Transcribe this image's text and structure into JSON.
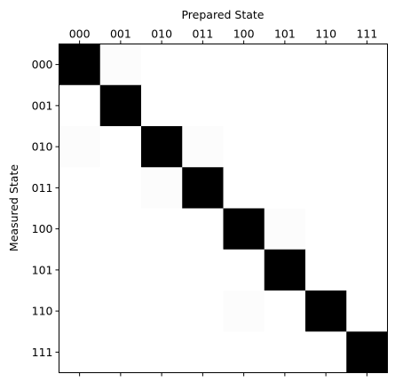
{
  "chart_data": {
    "type": "heatmap",
    "title": "",
    "xlabel": "Prepared State",
    "ylabel": "Measured State",
    "x_categories": [
      "000",
      "001",
      "010",
      "011",
      "100",
      "101",
      "110",
      "111"
    ],
    "y_categories": [
      "000",
      "001",
      "010",
      "011",
      "100",
      "101",
      "110",
      "111"
    ],
    "x_tick_position": "top",
    "bottom_ticks_unlabeled": true,
    "colormap": "Greys",
    "color_range": [
      0,
      1
    ],
    "grid": false,
    "legend": "none",
    "matrix": [
      [
        1.0,
        0.01,
        0.0,
        0.0,
        0.0,
        0.0,
        0.0,
        0.0
      ],
      [
        0.0,
        1.0,
        0.0,
        0.0,
        0.0,
        0.0,
        0.0,
        0.0
      ],
      [
        0.01,
        0.0,
        1.0,
        0.01,
        0.0,
        0.0,
        0.0,
        0.0
      ],
      [
        0.0,
        0.0,
        0.01,
        1.0,
        0.0,
        0.0,
        0.0,
        0.0
      ],
      [
        0.0,
        0.0,
        0.0,
        0.0,
        1.0,
        0.01,
        0.0,
        0.0
      ],
      [
        0.0,
        0.0,
        0.0,
        0.0,
        0.0,
        1.0,
        0.0,
        0.0
      ],
      [
        0.0,
        0.0,
        0.0,
        0.0,
        0.01,
        0.0,
        1.0,
        0.0
      ],
      [
        0.0,
        0.0,
        0.0,
        0.0,
        0.0,
        0.0,
        0.0,
        1.0
      ]
    ]
  }
}
